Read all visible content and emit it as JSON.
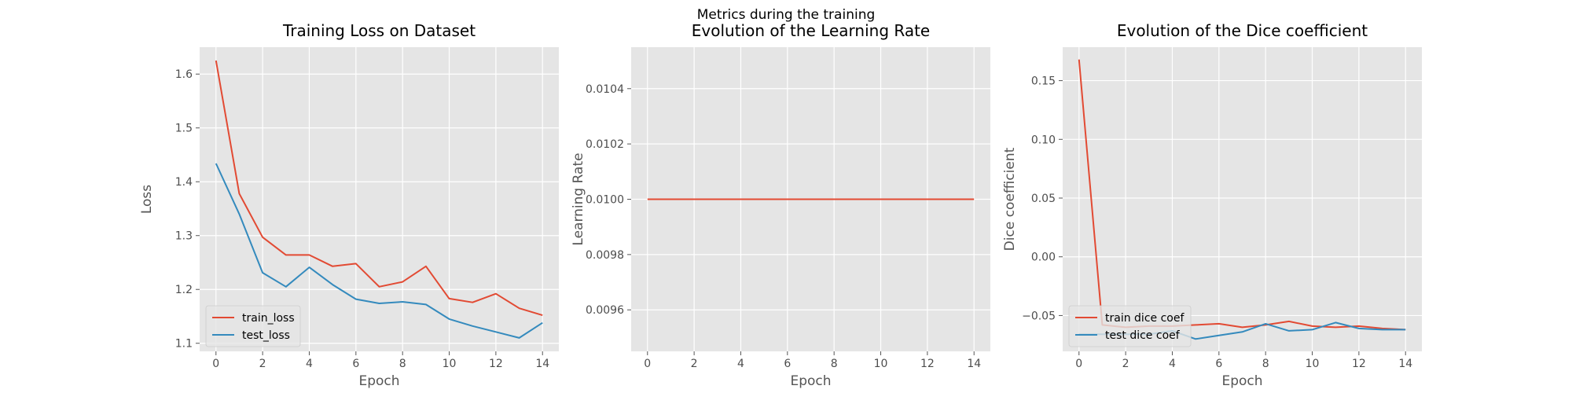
{
  "figure": {
    "title": "Metrics during the training"
  },
  "chart_data": [
    {
      "type": "line",
      "title": "Training Loss on Dataset",
      "xlabel": "Epoch",
      "ylabel": "Loss",
      "x": [
        0,
        1,
        2,
        3,
        4,
        5,
        6,
        7,
        8,
        9,
        10,
        11,
        12,
        13,
        14
      ],
      "xticks": [
        0,
        2,
        4,
        6,
        8,
        10,
        12,
        14
      ],
      "xlim": [
        -0.7,
        14.7
      ],
      "yticks": [
        1.1,
        1.2,
        1.3,
        1.4,
        1.5,
        1.6
      ],
      "ytick_labels": [
        "1.1",
        "1.2",
        "1.3",
        "1.4",
        "1.5",
        "1.6"
      ],
      "ylim": [
        1.085,
        1.65
      ],
      "grid": true,
      "legend": "lower-left",
      "series": [
        {
          "name": "train_loss",
          "color": "#E24A33",
          "values": [
            1.625,
            1.378,
            1.297,
            1.264,
            1.264,
            1.243,
            1.248,
            1.205,
            1.214,
            1.243,
            1.183,
            1.176,
            1.192,
            1.165,
            1.152
          ]
        },
        {
          "name": "test_loss",
          "color": "#348ABD",
          "values": [
            1.434,
            1.34,
            1.231,
            1.205,
            1.241,
            1.209,
            1.182,
            1.174,
            1.177,
            1.172,
            1.145,
            1.132,
            1.121,
            1.11,
            1.138
          ]
        }
      ]
    },
    {
      "type": "line",
      "title": "Evolution of the Learning Rate",
      "xlabel": "Epoch",
      "ylabel": "Learning Rate",
      "x": [
        0,
        1,
        2,
        3,
        4,
        5,
        6,
        7,
        8,
        9,
        10,
        11,
        12,
        13,
        14
      ],
      "xticks": [
        0,
        2,
        4,
        6,
        8,
        10,
        12,
        14
      ],
      "xlim": [
        -0.7,
        14.7
      ],
      "yticks": [
        0.0096,
        0.0098,
        0.01,
        0.0102,
        0.0104
      ],
      "ytick_labels": [
        "0.0096",
        "0.0098",
        "0.0100",
        "0.0102",
        "0.0104"
      ],
      "ylim": [
        0.00945,
        0.01055
      ],
      "grid": true,
      "series": [
        {
          "color": "#E24A33",
          "values": [
            0.01,
            0.01,
            0.01,
            0.01,
            0.01,
            0.01,
            0.01,
            0.01,
            0.01,
            0.01,
            0.01,
            0.01,
            0.01,
            0.01,
            0.01
          ]
        }
      ]
    },
    {
      "type": "line",
      "title": "Evolution of the Dice coefficient",
      "xlabel": "Epoch",
      "ylabel": "Dice coefficient",
      "x": [
        0,
        1,
        2,
        3,
        4,
        5,
        6,
        7,
        8,
        9,
        10,
        11,
        12,
        13,
        14
      ],
      "xticks": [
        0,
        2,
        4,
        6,
        8,
        10,
        12,
        14
      ],
      "xlim": [
        -0.7,
        14.7
      ],
      "yticks": [
        -0.05,
        0.0,
        0.05,
        0.1,
        0.15
      ],
      "ytick_labels": [
        "−0.05",
        "0.00",
        "0.05",
        "0.10",
        "0.15"
      ],
      "ylim": [
        -0.0805,
        0.1785
      ],
      "grid": true,
      "legend": "lower-left",
      "series": [
        {
          "name": "train dice coef",
          "color": "#E24A33",
          "values": [
            0.168,
            -0.058,
            -0.06,
            -0.059,
            -0.059,
            -0.058,
            -0.057,
            -0.06,
            -0.058,
            -0.055,
            -0.059,
            -0.06,
            -0.059,
            -0.061,
            -0.062
          ]
        },
        {
          "name": "test dice coef",
          "color": "#348ABD",
          "values": [
            -0.066,
            -0.066,
            -0.066,
            -0.066,
            -0.063,
            -0.07,
            -0.067,
            -0.064,
            -0.057,
            -0.063,
            -0.062,
            -0.056,
            -0.061,
            -0.062,
            -0.062
          ]
        }
      ]
    }
  ]
}
